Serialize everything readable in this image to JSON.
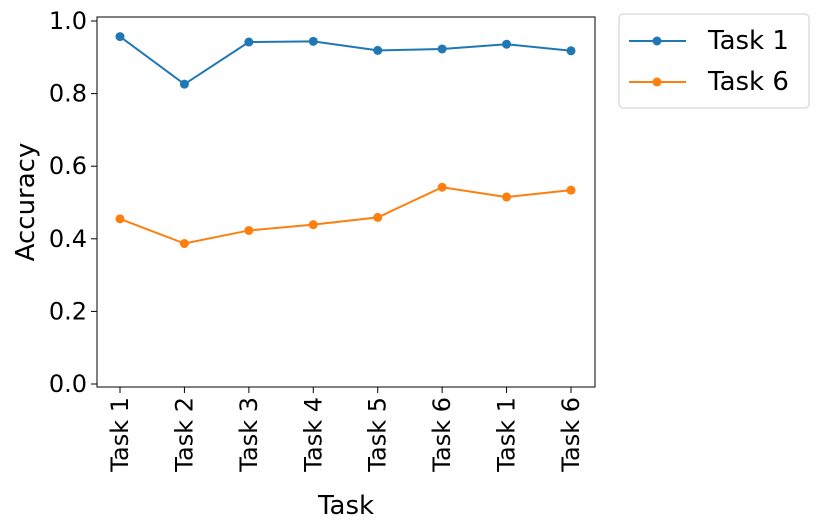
{
  "chart_data": {
    "type": "line",
    "title": "",
    "xlabel": "Task",
    "ylabel": "Accuracy",
    "categories": [
      "Task 1",
      "Task 2",
      "Task 3",
      "Task 4",
      "Task 5",
      "Task 6",
      "Task 1",
      "Task 6"
    ],
    "ylim": [
      0.0,
      1.0
    ],
    "yticks": [
      "0.0",
      "0.2",
      "0.4",
      "0.6",
      "0.8",
      "1.0"
    ],
    "grid": false,
    "legend_position": "outside-top-right",
    "series": [
      {
        "name": "Task 1",
        "color": "#1f77b4",
        "values": [
          0.957,
          0.826,
          0.942,
          0.944,
          0.919,
          0.923,
          0.936,
          0.918
        ]
      },
      {
        "name": "Task 6",
        "color": "#ff7f0e",
        "values": [
          0.455,
          0.387,
          0.423,
          0.439,
          0.459,
          0.542,
          0.515,
          0.534
        ]
      }
    ]
  }
}
